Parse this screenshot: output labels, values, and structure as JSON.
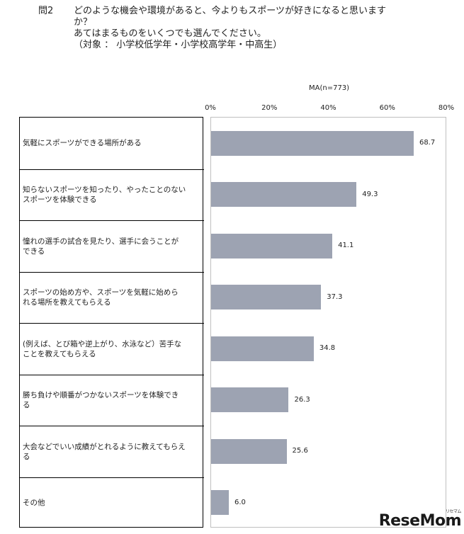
{
  "question": {
    "number": "問2",
    "lines": [
      "どのような機会や環境があると、今よりもスポーツが好きになると思います",
      "か？",
      "あてはまるものをいくつでも選んでください。",
      "（対象 ： 小学校低学年・小学校高学年・中高生）"
    ]
  },
  "ma_note": "MA(n=773)",
  "logo": {
    "text": "ReseMom",
    "sub": "リセマム"
  },
  "chart_data": {
    "type": "bar",
    "orientation": "horizontal",
    "categories": [
      [
        "気軽にスポーツができる場所がある"
      ],
      [
        "知らないスポーツを知ったり、やったことのない",
        "スポーツを体験できる"
      ],
      [
        "憧れの選手の試合を見たり、選手に会うことが",
        "できる"
      ],
      [
        "スポーツの始め方や、スポーツを気軽に始めら",
        "れる場所を教えてもらえる"
      ],
      [
        "(例えば、とび箱や逆上がり、水泳など）苦手な",
        "ことを教えてもらえる"
      ],
      [
        "勝ち負けや順番がつかないスポーツを体験でき",
        "る"
      ],
      [
        "大会などでいい成績がとれるように教えてもらえ",
        "る"
      ],
      [
        "その他"
      ]
    ],
    "values": [
      68.7,
      49.3,
      41.1,
      37.3,
      34.8,
      26.3,
      25.6,
      6.0
    ],
    "value_labels": [
      "68.7",
      "49.3",
      "41.1",
      "37.3",
      "34.8",
      "26.3",
      "25.6",
      "6.0"
    ],
    "x_ticks": [
      "0%",
      "20%",
      "40%",
      "60%",
      "80%"
    ],
    "xlim": [
      0,
      80
    ],
    "bar_color": "#9da3b2",
    "grid": false
  }
}
